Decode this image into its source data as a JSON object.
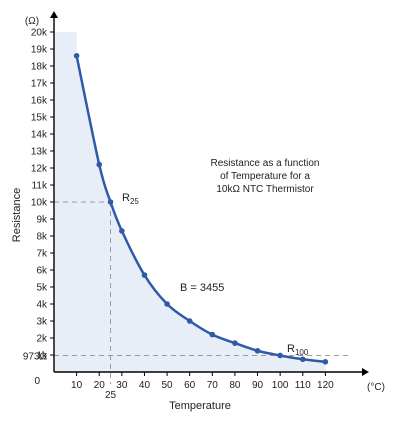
{
  "chart_data": {
    "type": "line",
    "ylabel": "Resistance",
    "xlabel": "Temperature",
    "y_unit": "(Ω)",
    "x_unit": "(°C)",
    "annotation_lines": [
      "Resistance as a function",
      "of Temperature for a",
      "10kΩ NTC Thermistor"
    ],
    "b_label": "B = 3455",
    "r25_label": "R",
    "r25_sub": "25",
    "r100_label": "R",
    "r100_sub": "100",
    "x_ticks": [
      "10",
      "20",
      "30",
      "40",
      "50",
      "60",
      "70",
      "80",
      "90",
      "100",
      "110",
      "120"
    ],
    "y_ticks": [
      "1k",
      "2k",
      "3k",
      "4k",
      "5k",
      "6k",
      "7k",
      "8k",
      "9k",
      "10k",
      "11k",
      "12k",
      "13k",
      "14k",
      "15k",
      "16k",
      "17k",
      "18k",
      "19k",
      "20k"
    ],
    "extra_x_tick": "25",
    "extra_y_tick": "973Ω",
    "origin_label": "0",
    "xlim": [
      0,
      130
    ],
    "ylim": [
      0,
      20000
    ],
    "series": [
      {
        "x": [
          10,
          20,
          25,
          30,
          40,
          50,
          60,
          70,
          80,
          90,
          100,
          110,
          120
        ],
        "y": [
          18600,
          12200,
          10000,
          8300,
          5700,
          4000,
          3000,
          2200,
          1700,
          1250,
          973,
          750,
          600
        ]
      }
    ],
    "colors": {
      "line": "#2e5aa8",
      "fill": "#e8eef8",
      "dashed": "#9a9a9a",
      "axis": "#000000"
    }
  }
}
